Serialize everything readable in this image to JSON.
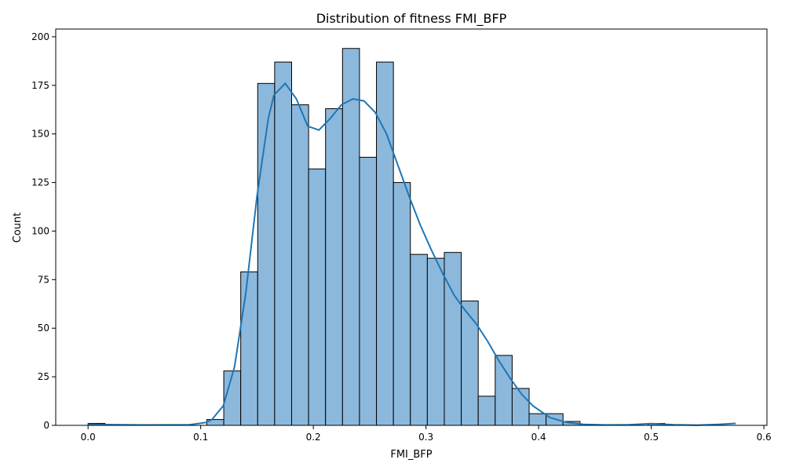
{
  "chart_data": {
    "type": "bar",
    "title": "Distribution of fitness FMI_BFP",
    "xlabel": "FMI_BFP",
    "ylabel": "Count",
    "xlim": [
      -0.0287,
      0.6027
    ],
    "ylim": [
      0,
      204
    ],
    "xticks": [
      0.0,
      0.1,
      0.2,
      0.3,
      0.4,
      0.5,
      0.6
    ],
    "xtick_labels": [
      "0.0",
      "0.1",
      "0.2",
      "0.3",
      "0.4",
      "0.5",
      "0.6"
    ],
    "yticks": [
      0,
      25,
      50,
      75,
      100,
      125,
      150,
      175,
      200
    ],
    "ytick_labels": [
      "0",
      "25",
      "50",
      "75",
      "100",
      "125",
      "150",
      "175",
      "200"
    ],
    "grid": false,
    "bin_start": 0.0,
    "bin_width": 0.01506,
    "counts": [
      1,
      0,
      0,
      0,
      0,
      0,
      0,
      3,
      28,
      79,
      176,
      187,
      165,
      132,
      163,
      194,
      138,
      187,
      125,
      88,
      86,
      89,
      64,
      15,
      36,
      19,
      6,
      6,
      2,
      0,
      0,
      0,
      0,
      1,
      0,
      0,
      0,
      0
    ],
    "kde": {
      "x": [
        0.0,
        0.05,
        0.09,
        0.105,
        0.11,
        0.12,
        0.13,
        0.14,
        0.15,
        0.16,
        0.165,
        0.175,
        0.185,
        0.195,
        0.205,
        0.215,
        0.225,
        0.235,
        0.245,
        0.255,
        0.265,
        0.275,
        0.285,
        0.295,
        0.305,
        0.315,
        0.325,
        0.335,
        0.345,
        0.355,
        0.365,
        0.375,
        0.385,
        0.395,
        0.41,
        0.425,
        0.44,
        0.46,
        0.48,
        0.5,
        0.52,
        0.54,
        0.56,
        0.575
      ],
      "y": [
        0.5,
        0.2,
        0.3,
        1.5,
        3,
        10,
        30,
        68,
        118,
        158,
        170,
        176,
        168,
        154,
        152,
        158,
        165,
        168,
        167,
        161,
        150,
        134,
        118,
        103,
        90,
        78,
        67,
        59,
        52,
        43,
        33,
        24,
        16,
        10,
        4,
        1.5,
        0.5,
        0.2,
        0.3,
        0.9,
        0.3,
        0.1,
        0.5,
        1.0
      ]
    },
    "bar_color": "#8cb8dc",
    "bar_edge_color": "#000000",
    "line_color": "#1f77b4"
  }
}
